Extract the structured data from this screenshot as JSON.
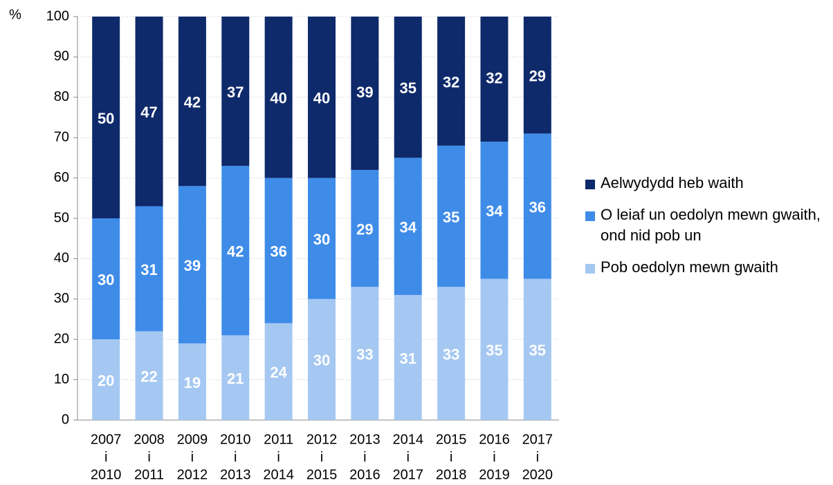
{
  "chart_data": {
    "type": "stacked-bar",
    "y_label": "%",
    "categories": [
      [
        "2007",
        "i",
        "2010"
      ],
      [
        "2008",
        "i",
        "2011"
      ],
      [
        "2009",
        "i",
        "2012"
      ],
      [
        "2010",
        "i",
        "2013"
      ],
      [
        "2011",
        "i",
        "2014"
      ],
      [
        "2012",
        "i",
        "2015"
      ],
      [
        "2013",
        "i",
        "2016"
      ],
      [
        "2014",
        "i",
        "2017"
      ],
      [
        "2015",
        "i",
        "2018"
      ],
      [
        "2016",
        "i",
        "2019"
      ],
      [
        "2017",
        "i",
        "2020"
      ]
    ],
    "series": [
      {
        "name": "Pob oedolyn mewn gwaith",
        "color": "#a5c8f2",
        "values": [
          20,
          22,
          19,
          21,
          24,
          30,
          33,
          31,
          33,
          35,
          35
        ]
      },
      {
        "name": "O leiaf un oedolyn mewn gwaith, ond nid pob un",
        "color": "#3f8ce8",
        "values": [
          30,
          31,
          39,
          42,
          36,
          30,
          29,
          34,
          35,
          34,
          36
        ]
      },
      {
        "name": "Aelwydydd heb waith",
        "color": "#0e2a6b",
        "values": [
          50,
          47,
          42,
          37,
          40,
          40,
          39,
          35,
          32,
          32,
          29
        ]
      }
    ],
    "ylim": [
      0,
      100
    ],
    "yticks": [
      0,
      10,
      20,
      30,
      40,
      50,
      60,
      70,
      80,
      90,
      100
    ],
    "grid": true
  }
}
